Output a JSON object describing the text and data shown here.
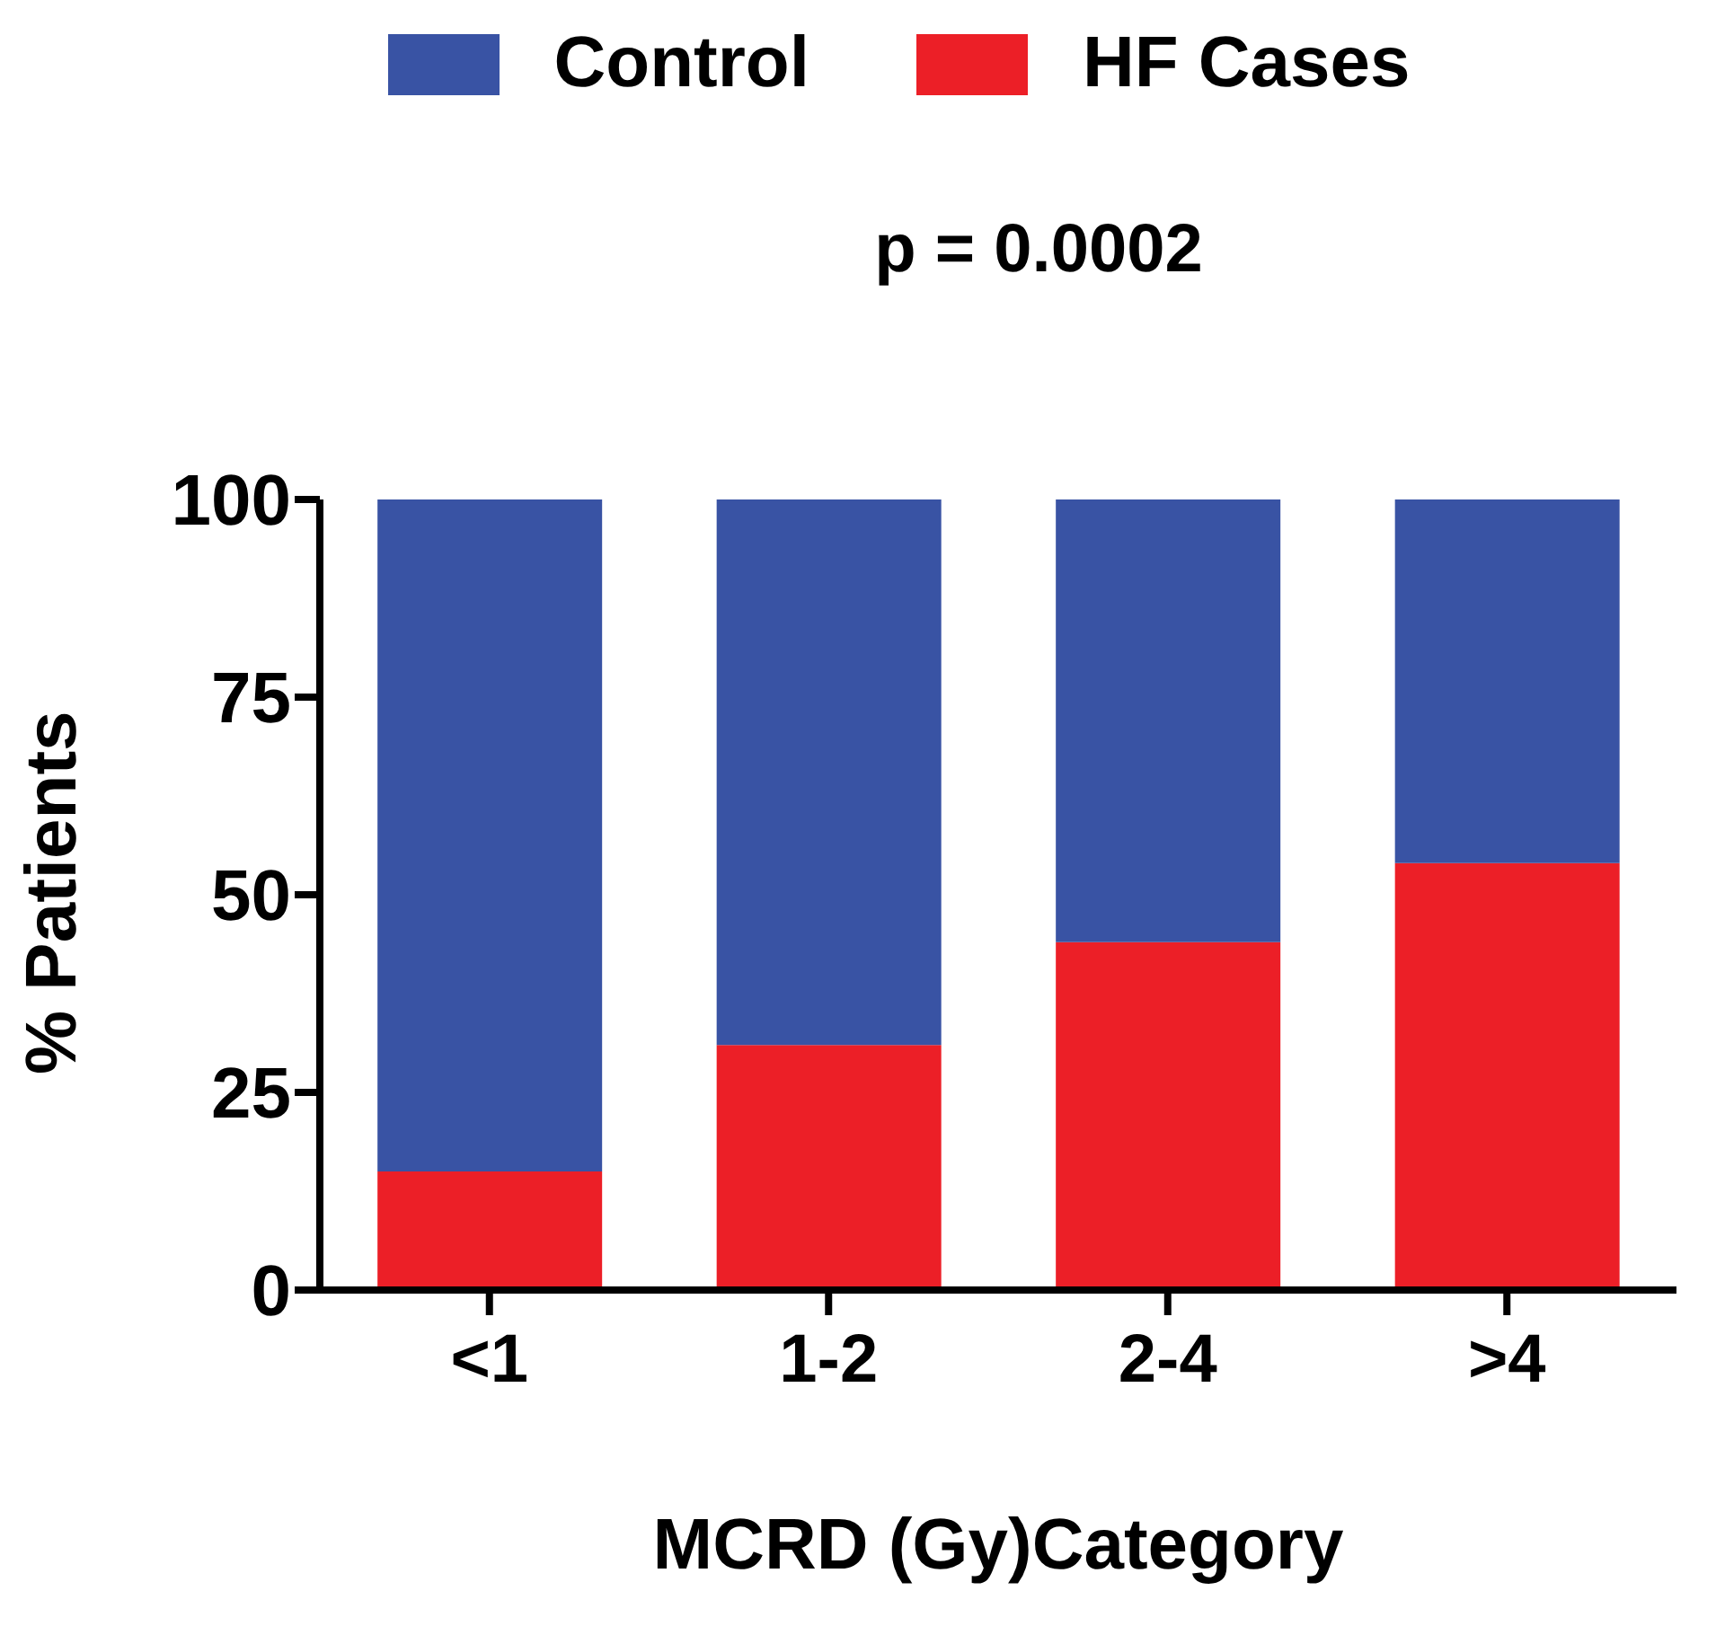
{
  "chart_data": {
    "type": "bar",
    "stacked": true,
    "categories": [
      "<1",
      "1-2",
      "2-4",
      ">4"
    ],
    "series": [
      {
        "name": "HF Cases",
        "color": "#ec1f27",
        "values": [
          15,
          31,
          44,
          54
        ]
      },
      {
        "name": "Control",
        "color": "#3953a4",
        "values": [
          85,
          69,
          56,
          46
        ]
      }
    ],
    "ylim": [
      0,
      100
    ],
    "yticks": [
      0,
      25,
      50,
      75,
      100
    ],
    "xlabel": "MCRD (Gy)Category",
    "ylabel": "% Patients",
    "annotations": [
      "p = 0.0002"
    ],
    "legend": "top",
    "grid": false
  }
}
